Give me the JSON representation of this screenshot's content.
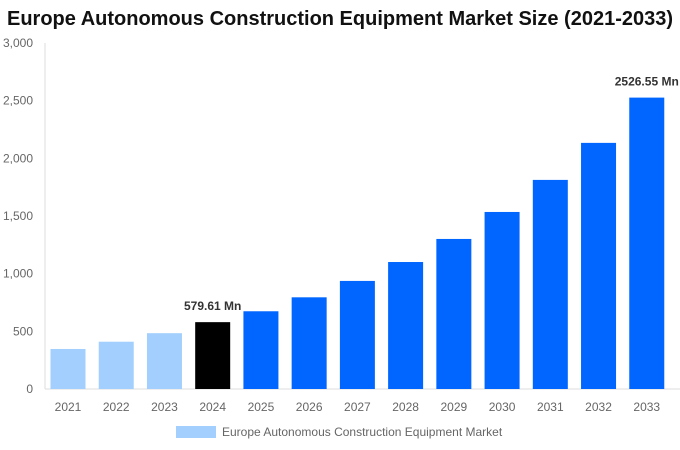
{
  "chart_data": {
    "type": "bar",
    "title": "Europe Autonomous Construction Equipment Market Size (2021-2033)",
    "categories": [
      "2021",
      "2022",
      "2023",
      "2024",
      "2025",
      "2026",
      "2027",
      "2028",
      "2029",
      "2030",
      "2031",
      "2032",
      "2033"
    ],
    "series": [
      {
        "name": "Europe Autonomous Construction Equipment Market",
        "values": [
          347,
          410,
          484,
          579.61,
          674,
          795,
          937,
          1101,
          1301,
          1535,
          1813,
          2134,
          2526.55
        ]
      }
    ],
    "bar_colors": [
      "#a3cffe",
      "#a3cffe",
      "#a3cffe",
      "#000000",
      "#0066ff",
      "#0066ff",
      "#0066ff",
      "#0066ff",
      "#0066ff",
      "#0066ff",
      "#0066ff",
      "#0066ff",
      "#0066ff"
    ],
    "data_labels": [
      {
        "category": "2024",
        "text": "579.61 Mn"
      },
      {
        "category": "2033",
        "text": "2526.55 Mn"
      }
    ],
    "yticks": [
      "0",
      "500",
      "1,000",
      "1,500",
      "2,000",
      "2,500",
      "3,000"
    ],
    "ylim": [
      0,
      3000
    ],
    "xlabel": "",
    "ylabel": "",
    "grid": false,
    "legend": "bottom"
  }
}
